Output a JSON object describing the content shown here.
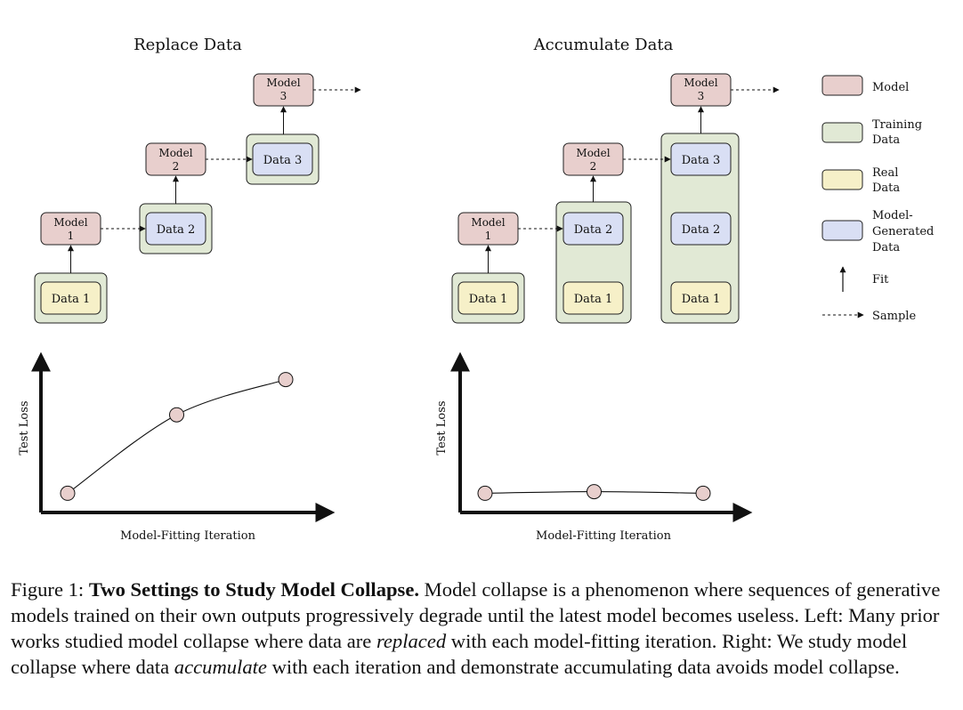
{
  "panels": {
    "replace": {
      "title": "Replace Data",
      "models": [
        [
          "Model",
          "1"
        ],
        [
          "Model",
          "2"
        ],
        [
          "Model",
          "3"
        ]
      ],
      "data": [
        "Data 1",
        "Data 2",
        "Data 3"
      ]
    },
    "accumulate": {
      "title": "Accumulate Data",
      "models": [
        [
          "Model",
          "1"
        ],
        [
          "Model",
          "2"
        ],
        [
          "Model",
          "3"
        ]
      ],
      "data": [
        "Data 1",
        "Data 2",
        "Data 3"
      ]
    }
  },
  "legend": {
    "items": [
      {
        "label": [
          "Model"
        ],
        "color": "#e8cfcd"
      },
      {
        "label": [
          "Training",
          "Data"
        ],
        "color": "#e1e9d5"
      },
      {
        "label": [
          "Real",
          "Data"
        ],
        "color": "#f6f0c8"
      },
      {
        "label": [
          "Model-",
          "Generated",
          "Data"
        ],
        "color": "#d9dff4"
      }
    ],
    "fit_label": "Fit",
    "sample_label": "Sample"
  },
  "charts": {
    "ylabel": "Test Loss",
    "xlabel": "Model-Fitting Iteration"
  },
  "chart_data": [
    {
      "type": "line",
      "title": "",
      "xlabel": "Model-Fitting Iteration",
      "ylabel": "Test Loss",
      "x": [
        1,
        2,
        3
      ],
      "values": [
        0.12,
        0.61,
        0.83
      ],
      "ylim": [
        0,
        1
      ],
      "grid": false
    },
    {
      "type": "line",
      "title": "",
      "xlabel": "Model-Fitting Iteration",
      "ylabel": "Test Loss",
      "x": [
        1,
        2,
        3
      ],
      "values": [
        0.12,
        0.13,
        0.12
      ],
      "ylim": [
        0,
        1
      ],
      "grid": false
    }
  ],
  "colors": {
    "model": "#e8cfcd",
    "training": "#e1e9d5",
    "real": "#f6f0c8",
    "generated": "#d9dff4",
    "point": "#e8cfcd"
  },
  "caption": {
    "prefix": "Figure 1: ",
    "bold": "Two Settings to Study Model Collapse.",
    "text1": " Model collapse is a phenomenon where sequences of generative models trained on their own outputs progressively degrade until the latest model becomes useless. Left: Many prior works studied model collapse where data are ",
    "italic1": "replaced",
    "text2": " with each model-fitting iteration. Right: We study model collapse where data ",
    "italic2": "accumulate",
    "text3": " with each iteration and demonstrate accumulating data avoids model collapse."
  }
}
